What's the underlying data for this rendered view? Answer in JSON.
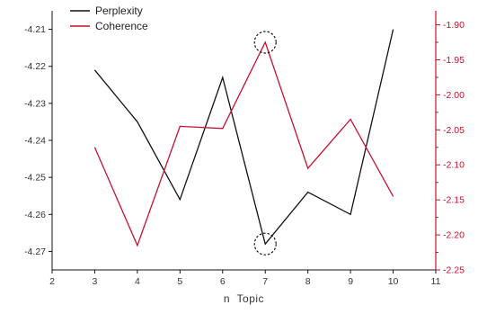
{
  "chart_data": {
    "type": "line",
    "title": "",
    "xlabel": "n  Topic",
    "ylabel": "",
    "y2label": "",
    "xlim": [
      2,
      11
    ],
    "ylim": [
      -4.275,
      -4.205
    ],
    "y2lim": [
      -2.25,
      -1.88
    ],
    "x_ticks": [
      "2",
      "3",
      "4",
      "5",
      "6",
      "7",
      "8",
      "9",
      "10",
      "11"
    ],
    "y_ticks": [
      "-4.21",
      "-4.22",
      "-4.23",
      "-4.24",
      "-4.25",
      "-4.26",
      "-4.27"
    ],
    "y2_ticks": [
      "-1.90",
      "-1.95",
      "-2.00",
      "-2.05",
      "-2.10",
      "-2.15",
      "-2.20",
      "-2.25"
    ],
    "x": [
      3,
      4,
      5,
      6,
      7,
      8,
      9,
      10
    ],
    "series": [
      {
        "name": "Perplexity",
        "axis": "left",
        "color": "#111111",
        "values": [
          -4.221,
          -4.235,
          -4.256,
          -4.223,
          -4.268,
          -4.254,
          -4.26,
          -4.21
        ]
      },
      {
        "name": "Coherence",
        "axis": "right",
        "color": "#c8102e",
        "values": [
          -2.075,
          -2.215,
          -2.045,
          -2.048,
          -1.925,
          -2.105,
          -2.035,
          -2.145
        ]
      }
    ],
    "annotations": [
      {
        "type": "dashed-circle",
        "x": 7,
        "series": "Perplexity"
      },
      {
        "type": "dashed-circle",
        "x": 7,
        "series": "Coherence"
      }
    ],
    "legend_position": "top-left",
    "grid": false
  }
}
